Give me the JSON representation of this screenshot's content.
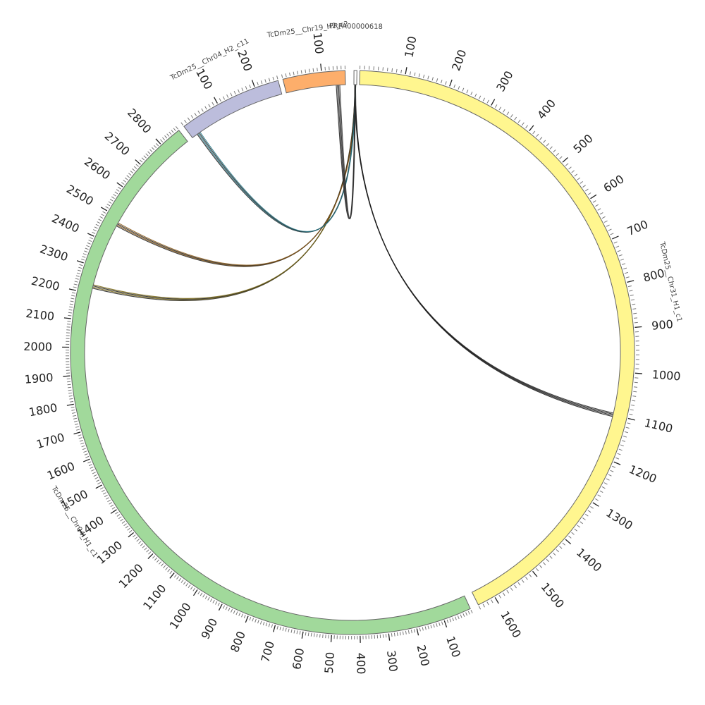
{
  "diagram": {
    "type": "circos",
    "segments": [
      {
        "name": "PRPA00000618",
        "length": 1,
        "color": "#ffffff",
        "start_deg": 0.3,
        "end_deg": 0.9,
        "major_ticks": [],
        "labels": []
      },
      {
        "name": "TcDm25__Chr31_H1_c1",
        "length": 1640,
        "color": "#fff68f",
        "start_deg": 1.5,
        "end_deg": 153.5,
        "major_ticks": [
          100,
          200,
          300,
          400,
          500,
          600,
          700,
          800,
          900,
          1000,
          1100,
          1200,
          1300,
          1400,
          1500,
          1600
        ],
        "labels": [
          "100",
          "200",
          "300",
          "400",
          "500",
          "600",
          "700",
          "800",
          "900",
          "1000",
          "1100",
          "1200",
          "1300",
          "1400",
          "1500",
          "1600"
        ]
      },
      {
        "name": "TcDm25__Chr04_H1_c1",
        "length": 2880,
        "color": "#a1d99b",
        "start_deg": 155.3,
        "end_deg": 322.0,
        "major_ticks": [
          100,
          200,
          300,
          400,
          500,
          600,
          700,
          800,
          900,
          1000,
          1100,
          1200,
          1300,
          1400,
          1500,
          1600,
          1700,
          1800,
          1900,
          2000,
          2100,
          2200,
          2300,
          2400,
          2500,
          2600,
          2700,
          2800
        ],
        "labels": [
          "100",
          "200",
          "300",
          "400",
          "500",
          "600",
          "700",
          "800",
          "900",
          "1000",
          "1100",
          "1200",
          "1300",
          "1400",
          "1500",
          "1600",
          "1700",
          "1800",
          "1900",
          "2000",
          "2100",
          "2200",
          "2300",
          "2400",
          "2500",
          "2600",
          "2700",
          "2800"
        ]
      },
      {
        "name": "TcDm25__Chr04_H2_c11",
        "length": 260,
        "color": "#bcbddc",
        "start_deg": 323.3,
        "end_deg": 344.7,
        "major_ticks": [
          100,
          200
        ],
        "labels": [
          "100",
          "200"
        ]
      },
      {
        "name": "TcDm25__Chr19_H2_c2",
        "length": 160,
        "color": "#fdae6b",
        "start_deg": 345.7,
        "end_deg": 358.5,
        "major_ticks": [
          100
        ],
        "labels": [
          "100"
        ]
      }
    ],
    "links": [
      {
        "from_segment": 0,
        "from_pos": 0.5,
        "to_segment": 1,
        "to_pos": 1100,
        "color": "#1a1a1a"
      },
      {
        "from_segment": 0,
        "from_pos": 0.5,
        "to_segment": 2,
        "to_pos": 2228,
        "color": "#7a6a1a"
      },
      {
        "from_segment": 0,
        "from_pos": 0.5,
        "to_segment": 2,
        "to_pos": 2475,
        "color": "#8a5a1a"
      },
      {
        "from_segment": 0,
        "from_pos": 0.5,
        "to_segment": 3,
        "to_pos": 20,
        "color": "#2b7a8a"
      },
      {
        "from_segment": 0,
        "from_pos": 0.5,
        "to_segment": 4,
        "to_pos": 140,
        "color": "#333333"
      }
    ]
  }
}
